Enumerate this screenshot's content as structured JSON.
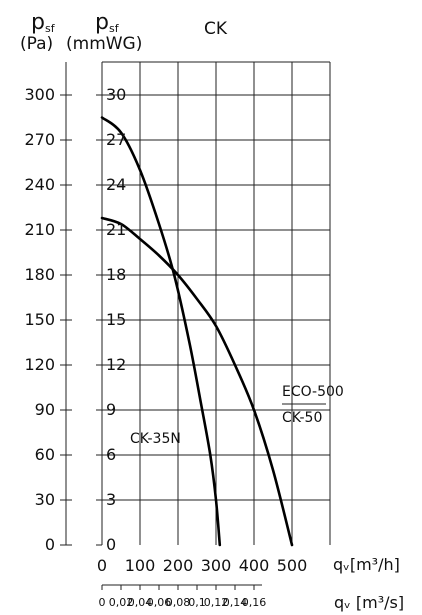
{
  "chart_data": {
    "type": "line",
    "title": "CK",
    "y_axis_pa": {
      "symbol_main": "p",
      "symbol_sub": "sf",
      "unit": "(Pa)",
      "range": [
        0,
        300
      ],
      "ticks": [
        0,
        30,
        60,
        90,
        120,
        150,
        180,
        210,
        240,
        270,
        300
      ]
    },
    "y_axis_mmwg": {
      "symbol_main": "p",
      "symbol_sub": "sf",
      "unit": "(mmWG)",
      "range": [
        0,
        30
      ],
      "ticks": [
        0,
        3,
        6,
        9,
        12,
        15,
        18,
        21,
        24,
        27,
        30
      ]
    },
    "x_axis_m3h": {
      "label": "qᵥ[m³/h]",
      "range": [
        0,
        500
      ],
      "ticks": [
        0,
        100,
        200,
        300,
        400,
        500
      ],
      "tick_labels": [
        "0",
        "100",
        "200",
        "300",
        "400",
        "500"
      ]
    },
    "x_axis_m3s": {
      "label": "qᵥ [m³/s]",
      "ticks": [
        0,
        0.02,
        0.04,
        0.06,
        0.08,
        0.1,
        0.12,
        0.14,
        0.16
      ],
      "tick_labels": [
        "0",
        "0,02",
        "0,04",
        "0,06",
        "0,08",
        "0,1",
        "0,12",
        "0,14",
        "0,16"
      ]
    },
    "grid": true,
    "series": [
      {
        "name": "CK-35N",
        "x": [
          0,
          50,
          100,
          150,
          190,
          230,
          260,
          285,
          300,
          310
        ],
        "y": [
          285,
          275,
          250,
          214,
          180,
          135,
          95,
          60,
          30,
          0
        ]
      },
      {
        "name": "ECO-500 CK-50",
        "x": [
          0,
          50,
          100,
          150,
          200,
          250,
          300,
          350,
          400,
          450,
          500
        ],
        "y": [
          218,
          214,
          204,
          193,
          180,
          164,
          146,
          120,
          90,
          50,
          0
        ]
      }
    ],
    "annotations": [
      {
        "text": "ECO-500",
        "series": "ECO-500 CK-50"
      },
      {
        "text": "CK-50",
        "series": "ECO-500 CK-50"
      },
      {
        "text": "CK-35N",
        "series": "CK-35N"
      }
    ]
  }
}
